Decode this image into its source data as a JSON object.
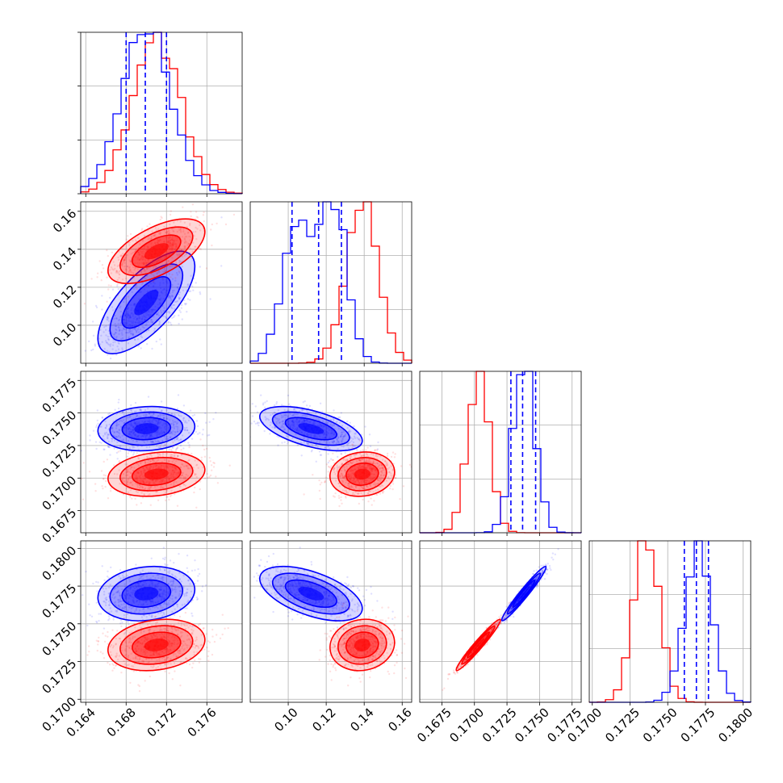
{
  "chart_data": {
    "type": "corner",
    "parameters": [
      {
        "range": [
          0.1635,
          0.1795
        ],
        "ticks": [
          0.164,
          0.168,
          0.172,
          0.176
        ],
        "tick_labels": [
          "0.164",
          "0.168",
          "0.172",
          "0.176"
        ]
      },
      {
        "range": [
          0.08,
          0.165
        ],
        "ticks": [
          0.1,
          0.12,
          0.14,
          0.16
        ],
        "tick_labels": [
          "0.10",
          "0.12",
          "0.14",
          "0.16"
        ]
      },
      {
        "range": [
          0.1658,
          0.1782
        ],
        "ticks": [
          0.1675,
          0.17,
          0.1725,
          0.175,
          0.1775
        ],
        "tick_labels": [
          "0.1675",
          "0.1700",
          "0.1725",
          "0.1750",
          "0.1775"
        ]
      },
      {
        "range": [
          0.1698,
          0.1805
        ],
        "ticks": [
          0.17,
          0.1725,
          0.175,
          0.1775,
          0.18
        ],
        "tick_labels": [
          "0.1700",
          "0.1725",
          "0.1750",
          "0.1775",
          "0.1800"
        ]
      }
    ],
    "series": [
      {
        "color": "#0000ff",
        "means": [
          0.17,
          0.112,
          0.1738,
          0.177
        ],
        "sds": [
          0.0024,
          0.0135,
          0.00085,
          0.0009
        ],
        "quantiles": [
          [
            0.168,
            0.1699,
            0.172
          ],
          [
            0.102,
            0.116,
            0.128
          ],
          [
            0.1728,
            0.1737,
            0.1747
          ],
          [
            0.1761,
            0.1769,
            0.1777
          ]
        ],
        "hist_peak_frac": 1.0
      },
      {
        "color": "#ff0000",
        "means": [
          0.171,
          0.139,
          0.1703,
          0.1736
        ],
        "sds": [
          0.0024,
          0.0085,
          0.00085,
          0.00085
        ],
        "hist_peak_frac": 1.0
      }
    ],
    "correlations": {
      "blue": {
        "0-1": 0.7,
        "0-2": 0.1,
        "0-3": 0.15,
        "1-2": -0.55,
        "1-3": -0.55,
        "2-3": 0.97
      },
      "red": {
        "0-1": 0.6,
        "0-2": 0.2,
        "0-3": 0.2,
        "1-2": 0.1,
        "1-3": 0.1,
        "2-3": 0.97
      }
    },
    "grid": true
  }
}
